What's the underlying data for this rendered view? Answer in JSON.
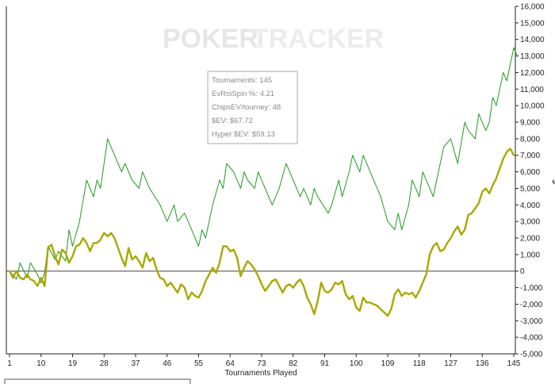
{
  "watermark": {
    "word1": "POKER",
    "word2": "TRACKER"
  },
  "info_box": {
    "lines": [
      "Tournaments: 145",
      "EvRoiSpin %: 4.21",
      "ChipsEV/tourney: 48",
      "$EV: $67.72",
      "Hyper $EV: $59.13"
    ]
  },
  "colors": {
    "green_series": "#1e9a1e",
    "olive_series": "#a8a800",
    "zero_line": "#444444",
    "axis": "#222222",
    "watermark": "#e6e6e6",
    "info_border": "#aaaaaa"
  },
  "chart_data": {
    "type": "line",
    "xlabel": "Tournaments Played",
    "ylabel": "$",
    "x_ticks": [
      1,
      10,
      19,
      28,
      37,
      46,
      55,
      64,
      73,
      82,
      91,
      100,
      109,
      118,
      127,
      136,
      145
    ],
    "y_ticks": [
      -5000,
      -4000,
      -3000,
      -2000,
      -1000,
      0,
      1000,
      2000,
      3000,
      4000,
      5000,
      6000,
      7000,
      8000,
      9000,
      10000,
      11000,
      12000,
      13000,
      14000,
      15000,
      16000
    ],
    "xlim": [
      1,
      145
    ],
    "ylim": [
      -5000,
      16000
    ],
    "grid": false,
    "series": [
      {
        "style": "thin",
        "points": [
          [
            1,
            0
          ],
          [
            3,
            -500
          ],
          [
            4,
            500
          ],
          [
            6,
            -400
          ],
          [
            7,
            500
          ],
          [
            9,
            -200
          ],
          [
            10,
            -700
          ],
          [
            11,
            -100
          ],
          [
            12,
            1500
          ],
          [
            14,
            700
          ],
          [
            15,
            1200
          ],
          [
            17,
            600
          ],
          [
            18,
            2500
          ],
          [
            19,
            1500
          ],
          [
            21,
            3000
          ],
          [
            23,
            5500
          ],
          [
            25,
            4500
          ],
          [
            26,
            5500
          ],
          [
            27,
            5000
          ],
          [
            29,
            8000
          ],
          [
            31,
            7000
          ],
          [
            33,
            6000
          ],
          [
            34,
            6500
          ],
          [
            36,
            5500
          ],
          [
            38,
            5000
          ],
          [
            39,
            6000
          ],
          [
            41,
            5000
          ],
          [
            44,
            4000
          ],
          [
            46,
            3000
          ],
          [
            48,
            4000
          ],
          [
            49,
            3000
          ],
          [
            51,
            3500
          ],
          [
            53,
            2500
          ],
          [
            55,
            1500
          ],
          [
            56,
            2500
          ],
          [
            57,
            2000
          ],
          [
            59,
            4000
          ],
          [
            61,
            5500
          ],
          [
            62,
            5000
          ],
          [
            63,
            6500
          ],
          [
            65,
            6000
          ],
          [
            67,
            5000
          ],
          [
            68,
            6000
          ],
          [
            69,
            5500
          ],
          [
            71,
            5000
          ],
          [
            72,
            6000
          ],
          [
            74,
            5000
          ],
          [
            76,
            4000
          ],
          [
            77,
            4500
          ],
          [
            78,
            5000
          ],
          [
            80,
            6500
          ],
          [
            82,
            5500
          ],
          [
            84,
            4500
          ],
          [
            85,
            5000
          ],
          [
            87,
            4000
          ],
          [
            88,
            5000
          ],
          [
            89,
            4500
          ],
          [
            92,
            3500
          ],
          [
            93,
            4000
          ],
          [
            95,
            5500
          ],
          [
            96,
            4500
          ],
          [
            98,
            6000
          ],
          [
            99,
            7000
          ],
          [
            101,
            6000
          ],
          [
            102,
            7000
          ],
          [
            104,
            6000
          ],
          [
            107,
            4500
          ],
          [
            109,
            3000
          ],
          [
            111,
            2500
          ],
          [
            112,
            3500
          ],
          [
            113,
            2500
          ],
          [
            115,
            4000
          ],
          [
            116,
            5500
          ],
          [
            118,
            4500
          ],
          [
            119,
            6000
          ],
          [
            121,
            5000
          ],
          [
            122,
            4500
          ],
          [
            123,
            5500
          ],
          [
            125,
            7500
          ],
          [
            127,
            8000
          ],
          [
            129,
            6500
          ],
          [
            131,
            9000
          ],
          [
            132,
            8500
          ],
          [
            134,
            8000
          ],
          [
            135,
            9500
          ],
          [
            137,
            8500
          ],
          [
            138,
            9000
          ],
          [
            139,
            10500
          ],
          [
            140,
            10000
          ],
          [
            141,
            11000
          ],
          [
            142,
            12000
          ],
          [
            143,
            11500
          ],
          [
            145,
            13500
          ],
          [
            146,
            13000
          ]
        ]
      },
      {
        "style": "thick",
        "points": [
          [
            1,
            0
          ],
          [
            2,
            -400
          ],
          [
            3,
            0
          ],
          [
            4,
            -400
          ],
          [
            5,
            -500
          ],
          [
            6,
            -200
          ],
          [
            7,
            -500
          ],
          [
            8,
            -600
          ],
          [
            9,
            -900
          ],
          [
            10,
            -400
          ],
          [
            11,
            -900
          ],
          [
            12,
            1400
          ],
          [
            13,
            1600
          ],
          [
            14,
            900
          ],
          [
            15,
            400
          ],
          [
            16,
            1300
          ],
          [
            17,
            1100
          ],
          [
            18,
            500
          ],
          [
            19,
            900
          ],
          [
            20,
            1500
          ],
          [
            21,
            1600
          ],
          [
            22,
            2000
          ],
          [
            23,
            1700
          ],
          [
            24,
            1200
          ],
          [
            25,
            1700
          ],
          [
            26,
            1700
          ],
          [
            27,
            1900
          ],
          [
            28,
            2300
          ],
          [
            29,
            2100
          ],
          [
            30,
            2300
          ],
          [
            31,
            2000
          ],
          [
            32,
            1400
          ],
          [
            33,
            800
          ],
          [
            34,
            300
          ],
          [
            35,
            1400
          ],
          [
            36,
            700
          ],
          [
            37,
            900
          ],
          [
            38,
            600
          ],
          [
            39,
            200
          ],
          [
            40,
            1100
          ],
          [
            41,
            600
          ],
          [
            42,
            800
          ],
          [
            43,
            100
          ],
          [
            44,
            -400
          ],
          [
            45,
            -500
          ],
          [
            46,
            -900
          ],
          [
            47,
            -700
          ],
          [
            48,
            -1000
          ],
          [
            49,
            -1300
          ],
          [
            50,
            -800
          ],
          [
            51,
            -1000
          ],
          [
            52,
            -1700
          ],
          [
            53,
            -1300
          ],
          [
            54,
            -1500
          ],
          [
            55,
            -1600
          ],
          [
            56,
            -1200
          ],
          [
            57,
            -600
          ],
          [
            58,
            -200
          ],
          [
            59,
            200
          ],
          [
            60,
            -100
          ],
          [
            61,
            500
          ],
          [
            62,
            1500
          ],
          [
            63,
            1500
          ],
          [
            64,
            1200
          ],
          [
            65,
            1300
          ],
          [
            66,
            800
          ],
          [
            67,
            -300
          ],
          [
            68,
            200
          ],
          [
            69,
            600
          ],
          [
            70,
            400
          ],
          [
            71,
            100
          ],
          [
            72,
            -300
          ],
          [
            73,
            -800
          ],
          [
            74,
            -1200
          ],
          [
            75,
            -900
          ],
          [
            76,
            -600
          ],
          [
            77,
            -500
          ],
          [
            78,
            -900
          ],
          [
            79,
            -1300
          ],
          [
            80,
            -900
          ],
          [
            81,
            -800
          ],
          [
            82,
            -1000
          ],
          [
            83,
            -700
          ],
          [
            84,
            -500
          ],
          [
            85,
            -900
          ],
          [
            86,
            -1600
          ],
          [
            87,
            -2000
          ],
          [
            88,
            -2600
          ],
          [
            89,
            -1800
          ],
          [
            90,
            -700
          ],
          [
            91,
            -1200
          ],
          [
            92,
            -1300
          ],
          [
            93,
            -1100
          ],
          [
            94,
            -700
          ],
          [
            95,
            -800
          ],
          [
            96,
            -600
          ],
          [
            97,
            -1400
          ],
          [
            98,
            -1700
          ],
          [
            99,
            -1500
          ],
          [
            100,
            -2200
          ],
          [
            101,
            -2400
          ],
          [
            102,
            -1600
          ],
          [
            103,
            -1900
          ],
          [
            104,
            -1900
          ],
          [
            105,
            -2000
          ],
          [
            106,
            -2100
          ],
          [
            107,
            -2300
          ],
          [
            108,
            -2500
          ],
          [
            109,
            -2700
          ],
          [
            110,
            -2300
          ],
          [
            111,
            -1400
          ],
          [
            112,
            -1100
          ],
          [
            113,
            -1500
          ],
          [
            114,
            -1300
          ],
          [
            115,
            -1400
          ],
          [
            116,
            -1300
          ],
          [
            117,
            -1600
          ],
          [
            118,
            -1200
          ],
          [
            119,
            -700
          ],
          [
            120,
            -200
          ],
          [
            121,
            1000
          ],
          [
            122,
            1500
          ],
          [
            123,
            1700
          ],
          [
            124,
            1200
          ],
          [
            125,
            1300
          ],
          [
            126,
            1700
          ],
          [
            127,
            2000
          ],
          [
            128,
            2400
          ],
          [
            129,
            2700
          ],
          [
            130,
            2200
          ],
          [
            131,
            2500
          ],
          [
            132,
            3400
          ],
          [
            133,
            3500
          ],
          [
            134,
            3800
          ],
          [
            135,
            4100
          ],
          [
            136,
            4800
          ],
          [
            137,
            5000
          ],
          [
            138,
            4700
          ],
          [
            139,
            5200
          ],
          [
            140,
            5600
          ],
          [
            141,
            6200
          ],
          [
            142,
            6800
          ],
          [
            143,
            7200
          ],
          [
            144,
            7400
          ],
          [
            145,
            7000
          ]
        ]
      }
    ]
  }
}
